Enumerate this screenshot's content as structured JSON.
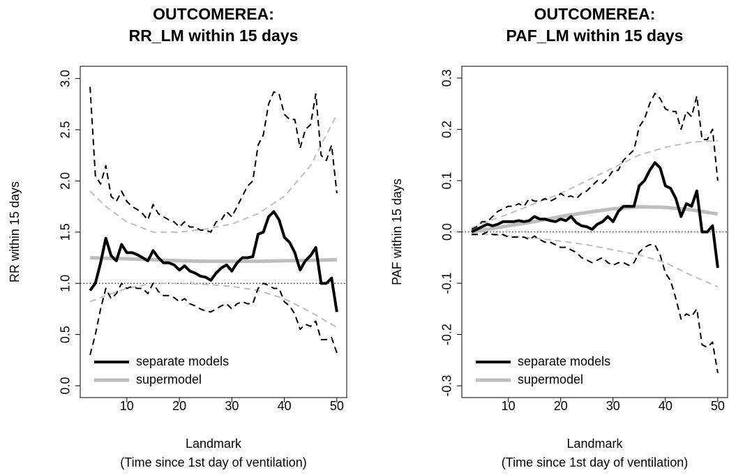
{
  "chart_data": [
    {
      "type": "line",
      "title": [
        "OUTCOMEREA:",
        "RR_LM within 15 days"
      ],
      "xlabel": [
        "Landmark",
        "(Time since 1st day of ventilation)"
      ],
      "ylabel": "RR within 15 days",
      "xlim": [
        1.12,
        51.88
      ],
      "ylim": [
        -0.116,
        3.12
      ],
      "xticks": [
        10,
        20,
        30,
        40,
        50
      ],
      "yticks": [
        {
          "value": 0,
          "label": "0.0"
        },
        {
          "value": 0.5,
          "label": "0.5"
        },
        {
          "value": 1,
          "label": "1.0"
        },
        {
          "value": 1.5,
          "label": "1.5"
        },
        {
          "value": 2,
          "label": "2.0"
        },
        {
          "value": 2.5,
          "label": "2.5"
        },
        {
          "value": 3,
          "label": "3.0"
        }
      ],
      "hline": 1,
      "legend": "bottomleft",
      "x": [
        3,
        4,
        5,
        6,
        7,
        8,
        9,
        10,
        11,
        12,
        13,
        14,
        15,
        16,
        17,
        18,
        19,
        20,
        21,
        22,
        23,
        24,
        25,
        26,
        27,
        28,
        29,
        30,
        31,
        32,
        33,
        34,
        35,
        36,
        37,
        38,
        39,
        40,
        41,
        42,
        43,
        44,
        45,
        46,
        47,
        48,
        49,
        50
      ],
      "series": [
        {
          "name": "separate models",
          "color": "#000000",
          "values": [
            0.93,
            1.0,
            1.2,
            1.44,
            1.27,
            1.22,
            1.38,
            1.3,
            1.3,
            1.28,
            1.25,
            1.22,
            1.32,
            1.25,
            1.2,
            1.2,
            1.18,
            1.13,
            1.17,
            1.12,
            1.1,
            1.07,
            1.06,
            1.03,
            1.1,
            1.15,
            1.18,
            1.12,
            1.2,
            1.25,
            1.25,
            1.26,
            1.48,
            1.5,
            1.65,
            1.7,
            1.62,
            1.45,
            1.4,
            1.3,
            1.13,
            1.22,
            1.27,
            1.35,
            1.0,
            1.0,
            1.05,
            0.72
          ]
        },
        {
          "name": "supermodel",
          "color": "#bebebe",
          "x": [
            3,
            6,
            10,
            15,
            20,
            25,
            30,
            35,
            40,
            45,
            50
          ],
          "values": [
            1.25,
            1.245,
            1.24,
            1.23,
            1.22,
            1.215,
            1.215,
            1.215,
            1.22,
            1.225,
            1.23
          ]
        },
        {
          "color": "#000000",
          "dash": true,
          "values": [
            2.92,
            2.05,
            1.97,
            2.15,
            1.85,
            1.8,
            1.9,
            1.8,
            1.75,
            1.72,
            1.68,
            1.62,
            1.77,
            1.68,
            1.65,
            1.62,
            1.6,
            1.55,
            1.6,
            1.55,
            1.55,
            1.52,
            1.52,
            1.5,
            1.6,
            1.62,
            1.7,
            1.65,
            1.75,
            1.85,
            1.95,
            2.0,
            2.35,
            2.45,
            2.75,
            2.87,
            2.85,
            2.65,
            2.6,
            2.6,
            2.32,
            2.5,
            2.55,
            2.85,
            2.25,
            2.2,
            2.35,
            1.88
          ]
        },
        {
          "color": "#000000",
          "dash": true,
          "values": [
            0.3,
            0.5,
            0.75,
            0.95,
            0.85,
            0.9,
            1.0,
            0.95,
            0.97,
            0.95,
            0.95,
            0.9,
            1.0,
            0.92,
            0.88,
            0.88,
            0.86,
            0.82,
            0.85,
            0.8,
            0.78,
            0.75,
            0.73,
            0.72,
            0.75,
            0.78,
            0.8,
            0.75,
            0.8,
            0.82,
            0.8,
            0.8,
            0.95,
            1.0,
            0.98,
            0.95,
            0.95,
            0.82,
            0.78,
            0.7,
            0.55,
            0.6,
            0.58,
            0.63,
            0.45,
            0.45,
            0.47,
            0.32
          ]
        },
        {
          "color": "#bebebe",
          "dash": true,
          "x": [
            3,
            6,
            10,
            15,
            20,
            25,
            30,
            35,
            40,
            45,
            50
          ],
          "values": [
            1.9,
            1.75,
            1.6,
            1.5,
            1.5,
            1.53,
            1.58,
            1.68,
            1.85,
            2.15,
            2.65
          ]
        },
        {
          "color": "#bebebe",
          "dash": true,
          "x": [
            3,
            6,
            10,
            15,
            20,
            25,
            30,
            35,
            40,
            45,
            50
          ],
          "values": [
            0.82,
            0.88,
            0.95,
            1.0,
            1.0,
            0.99,
            0.97,
            0.93,
            0.85,
            0.72,
            0.57
          ]
        }
      ]
    },
    {
      "type": "line",
      "title": [
        "OUTCOMEREA:",
        "PAF_LM within 15 days"
      ],
      "xlabel": [
        "Landmark",
        "(Time since 1st day of ventilation)"
      ],
      "ylabel": "PAF within 15 days",
      "xlim": [
        1.12,
        51.88
      ],
      "ylim": [
        -0.323,
        0.323
      ],
      "xticks": [
        10,
        20,
        30,
        40,
        50
      ],
      "yticks": [
        {
          "value": -0.3,
          "label": "-0.3"
        },
        {
          "value": -0.2,
          "label": "-0.2"
        },
        {
          "value": -0.1,
          "label": "-0.1"
        },
        {
          "value": 0,
          "label": "0.0"
        },
        {
          "value": 0.1,
          "label": "0.1"
        },
        {
          "value": 0.2,
          "label": "0.2"
        },
        {
          "value": 0.3,
          "label": "0.3"
        }
      ],
      "hline": 0,
      "legend": "bottomleft",
      "x": [
        3,
        4,
        5,
        6,
        7,
        8,
        9,
        10,
        11,
        12,
        13,
        14,
        15,
        16,
        17,
        18,
        19,
        20,
        21,
        22,
        23,
        24,
        25,
        26,
        27,
        28,
        29,
        30,
        31,
        32,
        33,
        34,
        35,
        36,
        37,
        38,
        39,
        40,
        41,
        42,
        43,
        44,
        45,
        46,
        47,
        48,
        49,
        50
      ],
      "series": [
        {
          "name": "separate models",
          "color": "#000000",
          "values": [
            0.0,
            0.005,
            0.01,
            0.015,
            0.012,
            0.015,
            0.02,
            0.02,
            0.02,
            0.022,
            0.02,
            0.022,
            0.03,
            0.025,
            0.025,
            0.022,
            0.02,
            0.025,
            0.022,
            0.03,
            0.018,
            0.012,
            0.01,
            0.005,
            0.015,
            0.02,
            0.03,
            0.02,
            0.04,
            0.05,
            0.05,
            0.05,
            0.09,
            0.1,
            0.12,
            0.135,
            0.125,
            0.09,
            0.085,
            0.065,
            0.03,
            0.055,
            0.05,
            0.08,
            0.0,
            0.0,
            0.012,
            -0.07
          ]
        },
        {
          "name": "supermodel",
          "color": "#bebebe",
          "x": [
            3,
            6,
            10,
            15,
            20,
            25,
            30,
            35,
            40,
            45,
            50
          ],
          "values": [
            0.0,
            0.005,
            0.012,
            0.02,
            0.03,
            0.038,
            0.045,
            0.049,
            0.048,
            0.043,
            0.035
          ]
        },
        {
          "color": "#000000",
          "dash": true,
          "values": [
            0.005,
            0.01,
            0.02,
            0.02,
            0.03,
            0.04,
            0.045,
            0.05,
            0.05,
            0.055,
            0.05,
            0.065,
            0.06,
            0.06,
            0.065,
            0.06,
            0.065,
            0.075,
            0.068,
            0.07,
            0.065,
            0.075,
            0.08,
            0.09,
            0.1,
            0.095,
            0.105,
            0.12,
            0.12,
            0.14,
            0.15,
            0.16,
            0.205,
            0.22,
            0.25,
            0.27,
            0.26,
            0.24,
            0.235,
            0.235,
            0.2,
            0.235,
            0.225,
            0.265,
            0.18,
            0.18,
            0.2,
            0.1
          ]
        },
        {
          "color": "#000000",
          "dash": true,
          "values": [
            -0.005,
            -0.005,
            -0.005,
            0.0,
            -0.005,
            -0.005,
            -0.005,
            -0.01,
            -0.01,
            -0.01,
            -0.01,
            -0.015,
            -0.008,
            -0.015,
            -0.02,
            -0.02,
            -0.025,
            -0.03,
            -0.03,
            -0.035,
            -0.04,
            -0.05,
            -0.055,
            -0.06,
            -0.055,
            -0.05,
            -0.06,
            -0.065,
            -0.06,
            -0.06,
            -0.065,
            -0.06,
            -0.04,
            -0.03,
            -0.025,
            -0.025,
            -0.045,
            -0.08,
            -0.095,
            -0.13,
            -0.17,
            -0.16,
            -0.165,
            -0.15,
            -0.22,
            -0.225,
            -0.215,
            -0.275
          ]
        },
        {
          "color": "#bebebe",
          "dash": true,
          "x": [
            3,
            6,
            10,
            15,
            20,
            25,
            30,
            35,
            40,
            45,
            50
          ],
          "values": [
            0.008,
            0.02,
            0.035,
            0.055,
            0.075,
            0.1,
            0.125,
            0.15,
            0.165,
            0.175,
            0.178
          ]
        },
        {
          "color": "#bebebe",
          "dash": true,
          "x": [
            3,
            6,
            10,
            15,
            20,
            25,
            30,
            35,
            40,
            45,
            50
          ],
          "values": [
            -0.003,
            -0.005,
            -0.008,
            -0.012,
            -0.018,
            -0.025,
            -0.035,
            -0.045,
            -0.06,
            -0.085,
            -0.107
          ]
        }
      ]
    }
  ]
}
